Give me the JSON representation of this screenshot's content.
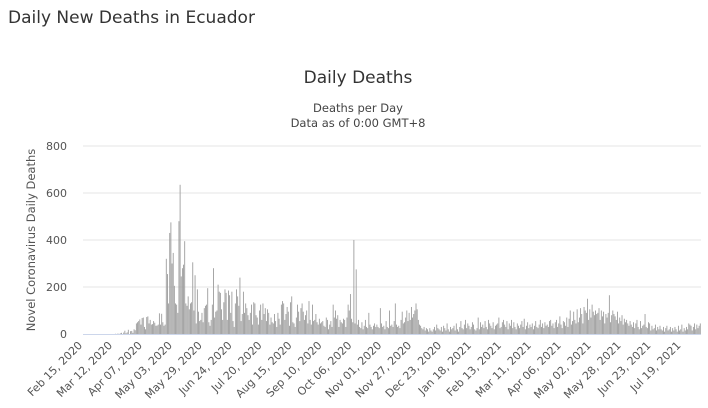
{
  "page": {
    "heading": "Daily New Deaths in Ecuador"
  },
  "chart_data": {
    "type": "bar",
    "title": "Daily Deaths",
    "subtitle": [
      "Deaths per Day",
      "Data as of 0:00 GMT+8"
    ],
    "xlabel": "",
    "ylabel": "Novel Coronavirus Daily Deaths",
    "ylim": [
      0,
      800
    ],
    "y_ticks": [
      0,
      200,
      400,
      600,
      800
    ],
    "x_tick_labels": [
      "Feb 15, 2020",
      "Mar 12, 2020",
      "Apr 07, 2020",
      "May 03, 2020",
      "May 29, 2020",
      "Jun 24, 2020",
      "Jul 20, 2020",
      "Aug 15, 2020",
      "Sep 10, 2020",
      "Oct 06, 2020",
      "Nov 01, 2020",
      "Nov 27, 2020",
      "Dec 23, 2020",
      "Jan 18, 2021",
      "Feb 13, 2021",
      "Mar 11, 2021",
      "Apr 06, 2021",
      "May 02, 2021",
      "May 28, 2021",
      "Jun 23, 2021",
      "Jul 19, 2021"
    ],
    "x_tick_interval_days": 26,
    "grid": true,
    "legend": "none",
    "bar_color": "#999999",
    "grid_color": "#e6e6e6",
    "axis_color": "#ccd6eb",
    "values": [
      0,
      0,
      0,
      0,
      0,
      0,
      0,
      0,
      0,
      0,
      0,
      0,
      0,
      0,
      0,
      0,
      0,
      0,
      0,
      0,
      0,
      0,
      0,
      0,
      0,
      0,
      0,
      0,
      1,
      0,
      2,
      0,
      3,
      5,
      0,
      6,
      14,
      3,
      7,
      18,
      0,
      12,
      13,
      5,
      20,
      16,
      45,
      50,
      55,
      62,
      40,
      68,
      70,
      30,
      20,
      72,
      75,
      45,
      60,
      40,
      42,
      55,
      48,
      35,
      36,
      40,
      88,
      40,
      86,
      50,
      35,
      40,
      320,
      255,
      130,
      430,
      475,
      300,
      345,
      205,
      130,
      125,
      90,
      480,
      635,
      245,
      280,
      295,
      395,
      130,
      120,
      160,
      105,
      130,
      135,
      305,
      100,
      250,
      45,
      190,
      95,
      55,
      60,
      90,
      50,
      110,
      120,
      125,
      195,
      50,
      35,
      60,
      125,
      280,
      70,
      95,
      100,
      210,
      180,
      175,
      105,
      60,
      135,
      190,
      175,
      60,
      185,
      165,
      90,
      180,
      55,
      30,
      130,
      190,
      160,
      120,
      240,
      55,
      85,
      180,
      90,
      130,
      110,
      80,
      60,
      90,
      125,
      40,
      135,
      130,
      80,
      70,
      40,
      100,
      125,
      60,
      130,
      85,
      110,
      55,
      105,
      90,
      40,
      70,
      50,
      45,
      85,
      55,
      30,
      90,
      65,
      40,
      125,
      140,
      130,
      60,
      85,
      115,
      95,
      35,
      135,
      160,
      50,
      45,
      30,
      70,
      125,
      95,
      55,
      110,
      130,
      95,
      60,
      80,
      100,
      45,
      140,
      60,
      40,
      125,
      55,
      60,
      85,
      50,
      40,
      65,
      45,
      50,
      55,
      35,
      30,
      70,
      60,
      20,
      40,
      55,
      30,
      125,
      70,
      100,
      65,
      80,
      30,
      60,
      50,
      45,
      65,
      60,
      30,
      70,
      125,
      100,
      170,
      65,
      50,
      400,
      45,
      275,
      40,
      60,
      30,
      25,
      50,
      20,
      35,
      60,
      30,
      25,
      90,
      40,
      30,
      20,
      35,
      45,
      30,
      40,
      30,
      25,
      110,
      45,
      30,
      35,
      20,
      55,
      30,
      25,
      100,
      35,
      40,
      30,
      55,
      130,
      40,
      30,
      35,
      25,
      60,
      95,
      45,
      50,
      70,
      100,
      55,
      90,
      60,
      115,
      70,
      85,
      100,
      130,
      105,
      60,
      40,
      35,
      25,
      20,
      30,
      15,
      25,
      20,
      10,
      25,
      15,
      10,
      20,
      30,
      15,
      40,
      25,
      20,
      15,
      30,
      10,
      35,
      25,
      15,
      45,
      20,
      10,
      30,
      20,
      25,
      35,
      15,
      45,
      20,
      10,
      30,
      55,
      25,
      20,
      40,
      60,
      25,
      45,
      35,
      20,
      30,
      50,
      40,
      20,
      15,
      25,
      70,
      20,
      50,
      30,
      40,
      25,
      55,
      30,
      20,
      60,
      45,
      35,
      25,
      50,
      20,
      35,
      40,
      45,
      70,
      25,
      30,
      50,
      60,
      40,
      30,
      55,
      20,
      45,
      35,
      60,
      25,
      50,
      30,
      20,
      45,
      35,
      25,
      40,
      55,
      30,
      65,
      20,
      35,
      50,
      25,
      40,
      30,
      45,
      20,
      35,
      55,
      30,
      25,
      40,
      60,
      30,
      45,
      25,
      50,
      35,
      40,
      30,
      55,
      60,
      35,
      45,
      25,
      50,
      60,
      30,
      45,
      75,
      40,
      25,
      55,
      50,
      35,
      70,
      30,
      65,
      100,
      40,
      55,
      95,
      60,
      45,
      105,
      50,
      70,
      110,
      85,
      45,
      115,
      100,
      90,
      150,
      60,
      105,
      70,
      125,
      95,
      80,
      100,
      85,
      90,
      110,
      60,
      100,
      75,
      95,
      45,
      85,
      70,
      90,
      165,
      50,
      80,
      100,
      85,
      75,
      60,
      95,
      45,
      70,
      55,
      80,
      40,
      65,
      50,
      60,
      45,
      35,
      55,
      40,
      30,
      50,
      25,
      45,
      60,
      30,
      20,
      55,
      25,
      35,
      40,
      85,
      30,
      25,
      50,
      45,
      15,
      35,
      20,
      25,
      40,
      15,
      30,
      20,
      35,
      20,
      15,
      30,
      10,
      25,
      35,
      15,
      20,
      30,
      10,
      25,
      15,
      30,
      20,
      10,
      35,
      15,
      20,
      40,
      10,
      25,
      15,
      30,
      20,
      45,
      40,
      35,
      15,
      30,
      45,
      20,
      40,
      25,
      35,
      45
    ]
  }
}
